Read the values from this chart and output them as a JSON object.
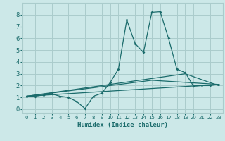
{
  "title": "",
  "xlabel": "Humidex (Indice chaleur)",
  "ylabel": "",
  "background_color": "#cce8e8",
  "grid_color": "#aacccc",
  "line_color": "#1a6b6b",
  "xlim": [
    -0.5,
    23.5
  ],
  "ylim": [
    -0.3,
    9.0
  ],
  "xticks": [
    0,
    1,
    2,
    3,
    4,
    5,
    6,
    7,
    8,
    9,
    10,
    11,
    12,
    13,
    14,
    15,
    16,
    17,
    18,
    19,
    20,
    21,
    22,
    23
  ],
  "yticks": [
    0,
    1,
    2,
    3,
    4,
    5,
    6,
    7,
    8
  ],
  "line1_x": [
    0,
    1,
    2,
    3,
    4,
    5,
    6,
    7,
    8,
    9,
    10,
    11,
    12,
    13,
    14,
    15,
    16,
    17,
    18,
    19,
    20,
    21,
    22,
    23
  ],
  "line1_y": [
    1.1,
    1.1,
    1.2,
    1.3,
    1.1,
    1.0,
    0.65,
    0.05,
    1.1,
    1.35,
    2.25,
    3.4,
    7.55,
    5.55,
    4.8,
    8.2,
    8.25,
    6.0,
    3.4,
    3.1,
    1.95,
    2.0,
    2.0,
    2.1
  ],
  "line2_x": [
    0,
    23
  ],
  "line2_y": [
    1.1,
    2.1
  ],
  "line3_x": [
    0,
    19,
    23
  ],
  "line3_y": [
    1.1,
    3.0,
    2.0
  ],
  "line4_x": [
    0,
    15,
    23
  ],
  "line4_y": [
    1.1,
    2.45,
    2.1
  ]
}
